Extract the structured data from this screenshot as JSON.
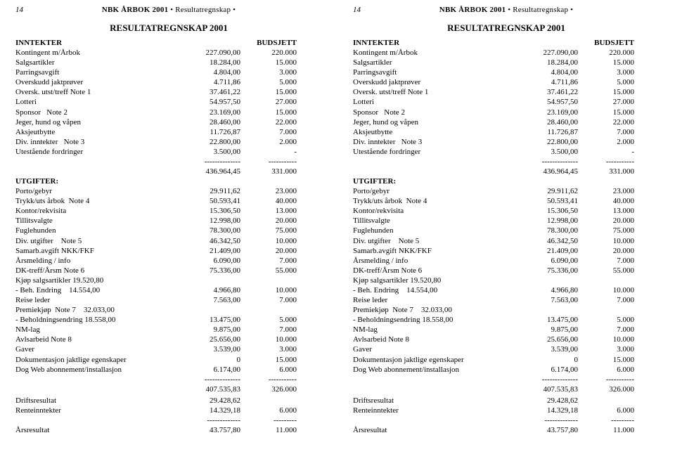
{
  "header": {
    "pagenum": "14",
    "book_bold": "NBK ÅRBOK 2001",
    "book_rest": " • Resultatregnskap •"
  },
  "title": "RESULTATREGNSKAP 2001",
  "colhead": {
    "left": "INNTEKTER",
    "right": "BUDSJETT"
  },
  "inntekter": [
    {
      "label": "Kontingent m/Årbok",
      "amt": "227.090,00",
      "budget": "220.000"
    },
    {
      "label": "Salgsartikler",
      "amt": "18.284,00",
      "budget": "15.000"
    },
    {
      "label": "Parringsavgift",
      "amt": "4.804,00",
      "budget": "3.000"
    },
    {
      "label": "Overskudd jaktprøver",
      "amt": "4.711,86",
      "budget": "5.000"
    },
    {
      "label": "Oversk. utst/treff Note 1",
      "amt": "37.461,22",
      "budget": "15.000"
    },
    {
      "label": "Lotteri",
      "amt": "54.957,50",
      "budget": "27.000"
    },
    {
      "label": "Sponsor   Note 2",
      "amt": "23.169,00",
      "budget": "15.000"
    },
    {
      "label": "Jeger, hund og våpen",
      "amt": "28.460,00",
      "budget": "22.000"
    },
    {
      "label": "Aksjeutbytte",
      "amt": "11.726,87",
      "budget": "7.000"
    },
    {
      "label": "Div. inntekter   Note 3",
      "amt": "22.800,00",
      "budget": "2.000"
    },
    {
      "label": "Utestående fordringer",
      "amt": "3.500,00",
      "budget": "-"
    }
  ],
  "inntekter_sep": {
    "amt": "--------------",
    "budget": "-----------"
  },
  "inntekter_total": {
    "amt": "436.964,45",
    "budget": "331.000"
  },
  "utgifter_head": "UTGIFTER:",
  "utgifter": [
    {
      "label": "Porto/gebyr",
      "amt": "29.911,62",
      "budget": "23.000"
    },
    {
      "label": "Trykk/uts årbok  Note 4",
      "amt": "50.593,41",
      "budget": "40.000"
    },
    {
      "label": "Kontor/rekvisita",
      "amt": "15.306,50",
      "budget": "13.000"
    },
    {
      "label": "Tillitsvalgte",
      "amt": "12.998,00",
      "budget": "20.000"
    },
    {
      "label": "Fuglehunden",
      "amt": "78.300,00",
      "budget": "75.000"
    },
    {
      "label": "Div. utgifter    Note 5",
      "amt": "46.342,50",
      "budget": "10.000"
    },
    {
      "label": "Samarb.avgift NKK/FKF",
      "amt": "21.409,00",
      "budget": "20.000"
    },
    {
      "label": "Årsmelding / info",
      "amt": "6.090,00",
      "budget": "7.000"
    },
    {
      "label": "DK-treff/Årsm Note 6",
      "amt": "75.336,00",
      "budget": "55.000"
    },
    {
      "label": "Kjøp salgsartikler 19.520,80",
      "amt": "",
      "budget": ""
    },
    {
      "label": "- Beh. Endring    14.554,00",
      "amt": "4.966,80",
      "budget": "10.000"
    },
    {
      "label": "Reise leder",
      "amt": "7.563,00",
      "budget": "7.000"
    },
    {
      "label": "Premiekjøp  Note 7    32.033,00",
      "amt": "",
      "budget": ""
    },
    {
      "label": "- Beholdningsendring 18.558,00",
      "amt": "13.475,00",
      "budget": "5.000"
    },
    {
      "label": "NM-lag",
      "amt": "9.875,00",
      "budget": "7.000"
    },
    {
      "label": "Avlsarbeid Note 8",
      "amt": "25.656,00",
      "budget": "10.000"
    },
    {
      "label": "Gaver",
      "amt": "3.539,00",
      "budget": "3.000"
    },
    {
      "label": "Dokumentasjon jaktlige egenskaper",
      "amt": "0",
      "budget": "15.000"
    },
    {
      "label": "Dog Web abonnement/installasjon",
      "amt": "6.174,00",
      "budget": "6.000"
    }
  ],
  "utgifter_sep": {
    "amt": "--------------",
    "budget": "-----------"
  },
  "utgifter_total": {
    "amt": "407.535,83",
    "budget": "326.000"
  },
  "drift": {
    "label": "Driftsresultat",
    "amt": "29.428,62",
    "budget": ""
  },
  "rente": {
    "label": "Renteinntekter",
    "amt": "14.329,18",
    "budget": "6.000"
  },
  "bottom_sep": {
    "amt": "-------------",
    "budget": "---------"
  },
  "aar": {
    "label": "Årsresultat",
    "amt": "43.757,80",
    "budget": "11.000"
  }
}
